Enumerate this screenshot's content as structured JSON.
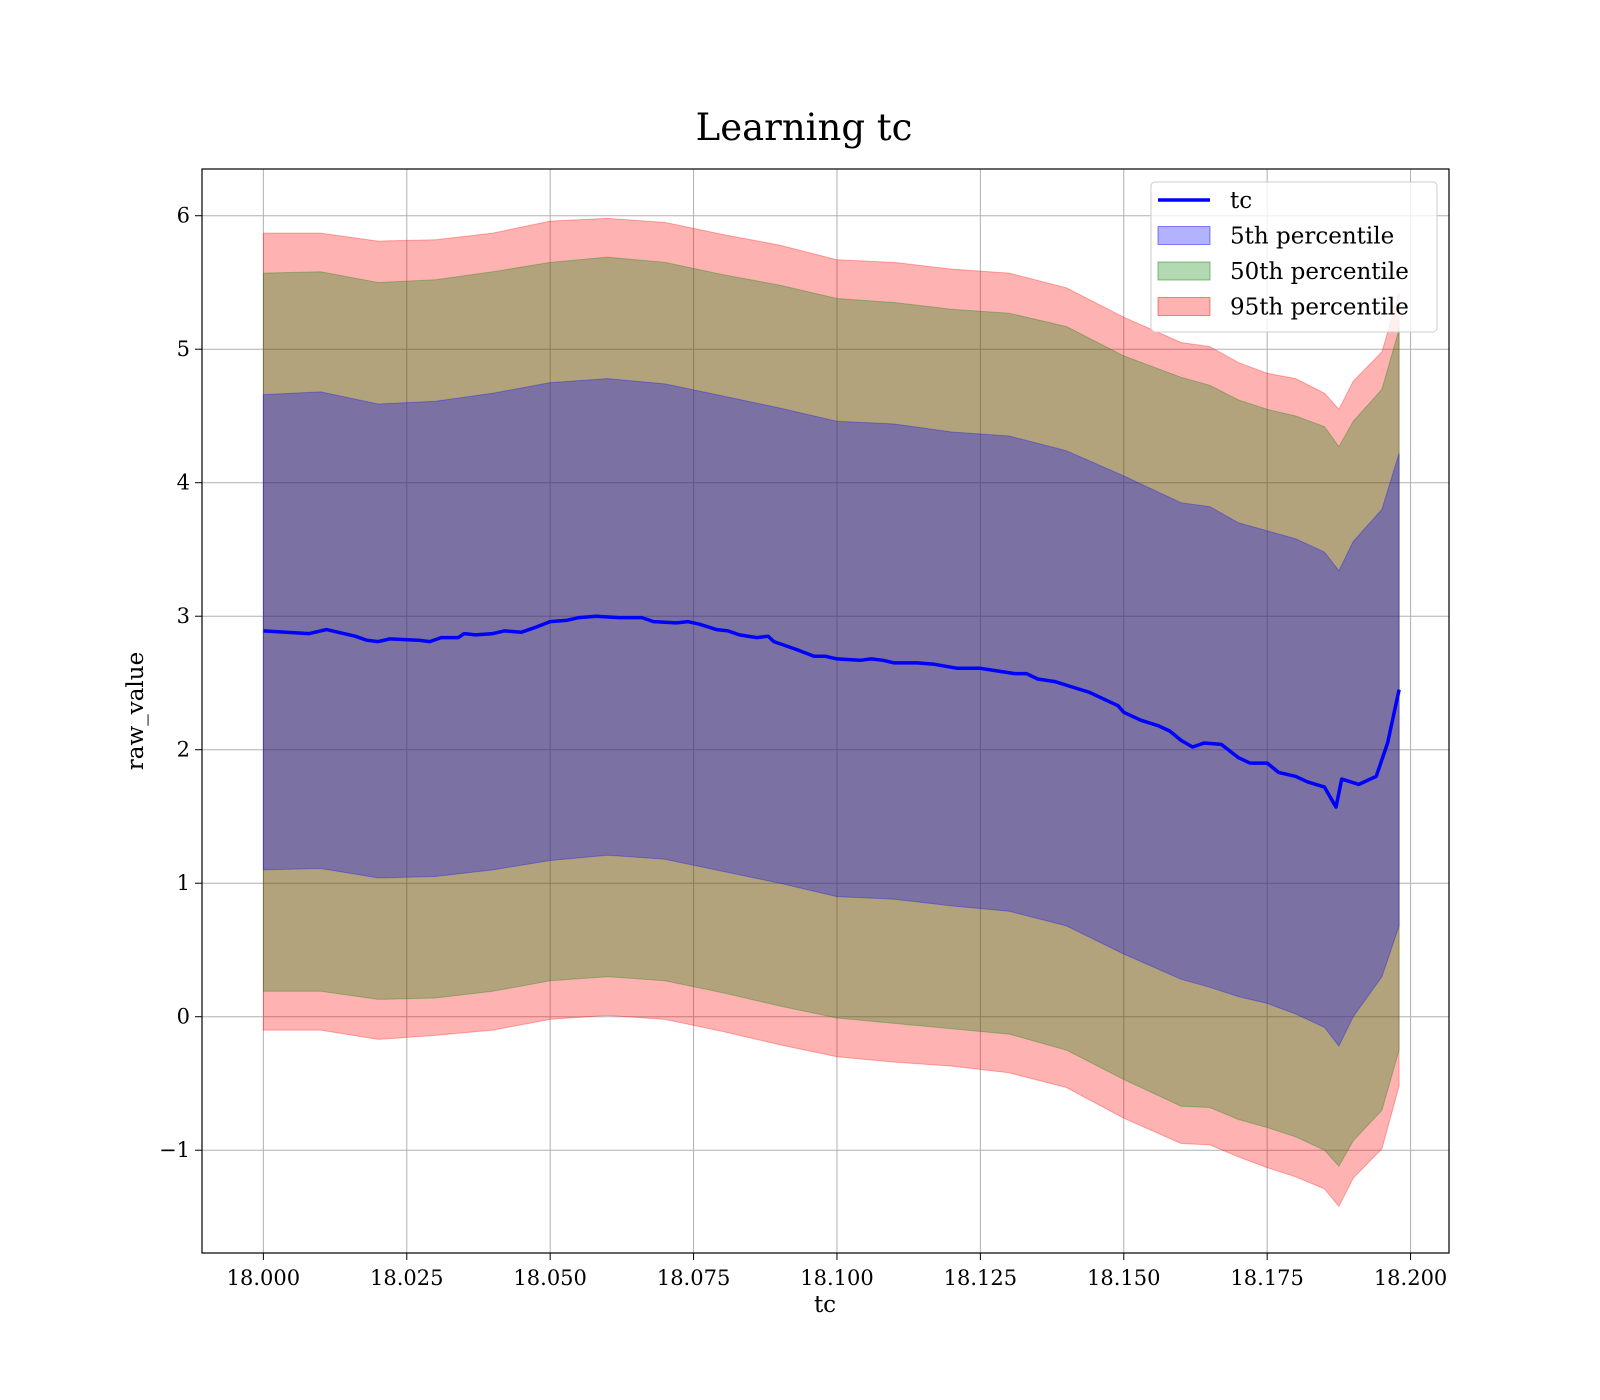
{
  "chart_data": {
    "type": "area",
    "title": "Learning tc",
    "xlabel": "tc",
    "ylabel": "raw_value",
    "xlim": [
      17.9893,
      18.2067
    ],
    "ylim": [
      -1.77,
      6.35
    ],
    "grid": true,
    "legend_placement": "top-right",
    "x_ticks": [
      18.0,
      18.025,
      18.05,
      18.075,
      18.1,
      18.125,
      18.15,
      18.175,
      18.2
    ],
    "x_tick_labels": [
      "18.000",
      "18.025",
      "18.050",
      "18.075",
      "18.100",
      "18.125",
      "18.150",
      "18.175",
      "18.200"
    ],
    "y_ticks": [
      -1,
      0,
      1,
      2,
      3,
      4,
      5,
      6
    ],
    "y_tick_labels": [
      "−1",
      "0",
      "1",
      "2",
      "3",
      "4",
      "5",
      "6"
    ],
    "legend": [
      "tc",
      "5th percentile",
      "50th percentile",
      "95th percentile"
    ],
    "series": [
      {
        "name": "tc",
        "kind": "line",
        "color": "#0000ff",
        "points": [
          [
            18.0,
            2.89
          ],
          [
            18.004,
            2.88
          ],
          [
            18.008,
            2.87
          ],
          [
            18.011,
            2.9
          ],
          [
            18.016,
            2.85
          ],
          [
            18.018,
            2.82
          ],
          [
            18.02,
            2.81
          ],
          [
            18.022,
            2.83
          ],
          [
            18.027,
            2.82
          ],
          [
            18.029,
            2.81
          ],
          [
            18.031,
            2.84
          ],
          [
            18.034,
            2.84
          ],
          [
            18.035,
            2.87
          ],
          [
            18.037,
            2.86
          ],
          [
            18.04,
            2.87
          ],
          [
            18.042,
            2.89
          ],
          [
            18.045,
            2.88
          ],
          [
            18.047,
            2.91
          ],
          [
            18.05,
            2.96
          ],
          [
            18.053,
            2.97
          ],
          [
            18.055,
            2.99
          ],
          [
            18.058,
            3.0
          ],
          [
            18.062,
            2.99
          ],
          [
            18.066,
            2.99
          ],
          [
            18.068,
            2.96
          ],
          [
            18.072,
            2.95
          ],
          [
            18.074,
            2.96
          ],
          [
            18.076,
            2.94
          ],
          [
            18.079,
            2.9
          ],
          [
            18.081,
            2.89
          ],
          [
            18.083,
            2.86
          ],
          [
            18.086,
            2.84
          ],
          [
            18.088,
            2.85
          ],
          [
            18.089,
            2.81
          ],
          [
            18.093,
            2.75
          ],
          [
            18.096,
            2.7
          ],
          [
            18.098,
            2.7
          ],
          [
            18.1,
            2.68
          ],
          [
            18.104,
            2.67
          ],
          [
            18.106,
            2.68
          ],
          [
            18.108,
            2.67
          ],
          [
            18.11,
            2.65
          ],
          [
            18.114,
            2.65
          ],
          [
            18.117,
            2.64
          ],
          [
            18.121,
            2.61
          ],
          [
            18.125,
            2.61
          ],
          [
            18.128,
            2.59
          ],
          [
            18.131,
            2.57
          ],
          [
            18.133,
            2.57
          ],
          [
            18.135,
            2.53
          ],
          [
            18.138,
            2.51
          ],
          [
            18.141,
            2.47
          ],
          [
            18.144,
            2.43
          ],
          [
            18.146,
            2.39
          ],
          [
            18.149,
            2.33
          ],
          [
            18.15,
            2.28
          ],
          [
            18.153,
            2.22
          ],
          [
            18.156,
            2.18
          ],
          [
            18.158,
            2.14
          ],
          [
            18.16,
            2.07
          ],
          [
            18.162,
            2.02
          ],
          [
            18.164,
            2.05
          ],
          [
            18.167,
            2.04
          ],
          [
            18.17,
            1.94
          ],
          [
            18.172,
            1.9
          ],
          [
            18.175,
            1.9
          ],
          [
            18.177,
            1.83
          ],
          [
            18.18,
            1.8
          ],
          [
            18.182,
            1.76
          ],
          [
            18.185,
            1.72
          ],
          [
            18.187,
            1.57
          ],
          [
            18.188,
            1.78
          ],
          [
            18.191,
            1.74
          ],
          [
            18.194,
            1.8
          ],
          [
            18.196,
            2.05
          ],
          [
            18.198,
            2.45
          ]
        ]
      },
      {
        "name": "5th percentile",
        "kind": "band",
        "color": "#0000ff",
        "opacity": 0.3,
        "x": [
          18.0,
          18.01,
          18.02,
          18.03,
          18.04,
          18.05,
          18.06,
          18.07,
          18.08,
          18.09,
          18.1,
          18.11,
          18.12,
          18.13,
          18.14,
          18.15,
          18.16,
          18.165,
          18.17,
          18.175,
          18.18,
          18.185,
          18.1875,
          18.19,
          18.195,
          18.198
        ],
        "lower": [
          1.1,
          1.11,
          1.04,
          1.05,
          1.1,
          1.17,
          1.21,
          1.18,
          1.09,
          1.0,
          0.9,
          0.88,
          0.83,
          0.79,
          0.68,
          0.47,
          0.28,
          0.22,
          0.15,
          0.1,
          0.02,
          -0.08,
          -0.22,
          0.0,
          0.3,
          0.68
        ],
        "upper": [
          4.66,
          4.68,
          4.59,
          4.61,
          4.67,
          4.75,
          4.78,
          4.74,
          4.65,
          4.56,
          4.46,
          4.44,
          4.38,
          4.35,
          4.24,
          4.05,
          3.85,
          3.82,
          3.7,
          3.64,
          3.58,
          3.48,
          3.34,
          3.56,
          3.8,
          4.22
        ]
      },
      {
        "name": "50th percentile",
        "kind": "band",
        "color": "#008000",
        "opacity": 0.3,
        "x": [
          18.0,
          18.01,
          18.02,
          18.03,
          18.04,
          18.05,
          18.06,
          18.07,
          18.08,
          18.09,
          18.1,
          18.11,
          18.12,
          18.13,
          18.14,
          18.15,
          18.16,
          18.165,
          18.17,
          18.175,
          18.18,
          18.185,
          18.1875,
          18.19,
          18.195,
          18.198
        ],
        "lower": [
          0.19,
          0.19,
          0.13,
          0.14,
          0.19,
          0.27,
          0.3,
          0.27,
          0.18,
          0.08,
          -0.01,
          -0.05,
          -0.09,
          -0.13,
          -0.25,
          -0.47,
          -0.67,
          -0.68,
          -0.77,
          -0.83,
          -0.9,
          -1.0,
          -1.12,
          -0.93,
          -0.7,
          -0.25
        ],
        "upper": [
          5.57,
          5.58,
          5.5,
          5.52,
          5.58,
          5.65,
          5.69,
          5.65,
          5.56,
          5.48,
          5.38,
          5.35,
          5.3,
          5.27,
          5.17,
          4.95,
          4.79,
          4.73,
          4.62,
          4.55,
          4.5,
          4.42,
          4.27,
          4.46,
          4.7,
          5.15
        ]
      },
      {
        "name": "95th percentile",
        "kind": "band",
        "color": "#ff0000",
        "opacity": 0.3,
        "x": [
          18.0,
          18.01,
          18.02,
          18.03,
          18.04,
          18.05,
          18.06,
          18.07,
          18.08,
          18.09,
          18.1,
          18.11,
          18.12,
          18.13,
          18.14,
          18.15,
          18.16,
          18.165,
          18.17,
          18.175,
          18.18,
          18.185,
          18.1875,
          18.19,
          18.195,
          18.198
        ],
        "lower": [
          -0.1,
          -0.1,
          -0.17,
          -0.14,
          -0.1,
          -0.02,
          0.01,
          -0.02,
          -0.11,
          -0.21,
          -0.3,
          -0.34,
          -0.37,
          -0.42,
          -0.53,
          -0.76,
          -0.95,
          -0.96,
          -1.05,
          -1.13,
          -1.2,
          -1.29,
          -1.42,
          -1.21,
          -0.99,
          -0.52
        ],
        "upper": [
          5.87,
          5.87,
          5.81,
          5.82,
          5.87,
          5.96,
          5.98,
          5.95,
          5.86,
          5.78,
          5.67,
          5.65,
          5.6,
          5.57,
          5.46,
          5.24,
          5.05,
          5.02,
          4.9,
          4.82,
          4.78,
          4.67,
          4.55,
          4.76,
          4.98,
          5.42
        ]
      }
    ]
  }
}
